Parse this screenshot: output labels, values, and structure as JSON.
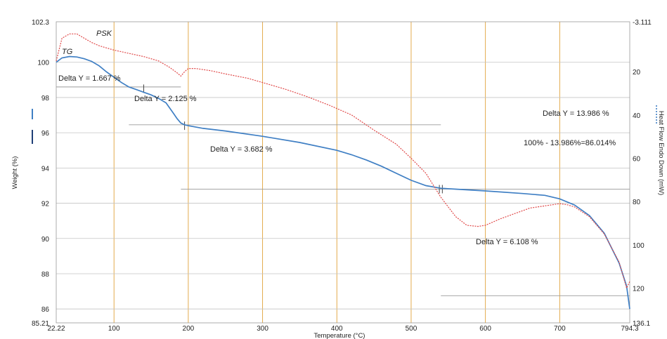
{
  "chart_data": {
    "type": "line",
    "xlabel": "Temperature (°C)",
    "ylabel_left": "Weight (%)",
    "ylabel_right": "Heat Flow Endo Down (mW)",
    "xlim": [
      22.22,
      794.3
    ],
    "ylim_left": [
      85.21,
      102.3
    ],
    "ylim_right": [
      -3.111,
      136.1
    ],
    "right_axis_inverted": true,
    "x_ticks": [
      22.22,
      100,
      200,
      300,
      400,
      500,
      600,
      700,
      794.3
    ],
    "x_tick_labels": [
      "22.22",
      "100",
      "200",
      "300",
      "400",
      "500",
      "600",
      "700",
      "794.3"
    ],
    "y_left_ticks": [
      85.21,
      86,
      88,
      90,
      92,
      94,
      96,
      98,
      100,
      102.3
    ],
    "y_left_tick_labels": [
      "85.21",
      "86",
      "88",
      "90",
      "92",
      "94",
      "96",
      "98",
      "100",
      "102.3"
    ],
    "y_right_ticks": [
      -3.111,
      20,
      40,
      60,
      80,
      100,
      120,
      136.1
    ],
    "y_right_tick_labels": [
      "-3.111",
      "20",
      "40",
      "60",
      "80",
      "100",
      "120",
      "136.1"
    ],
    "grid": true,
    "series": [
      {
        "axis": "left",
        "color": "#3f7fc4",
        "x": [
          22.22,
          30,
          40,
          50,
          60,
          70,
          80,
          90,
          100,
          110,
          120,
          130,
          140,
          150,
          160,
          170,
          175,
          180,
          185,
          190,
          195,
          200,
          220,
          250,
          300,
          350,
          400,
          420,
          440,
          460,
          480,
          500,
          520,
          540,
          560,
          600,
          650,
          680,
          700,
          720,
          740,
          760,
          780,
          790,
          794.3
        ],
        "values": [
          100.0,
          100.25,
          100.33,
          100.3,
          100.2,
          100.05,
          99.8,
          99.45,
          99.15,
          98.85,
          98.6,
          98.45,
          98.3,
          98.15,
          97.95,
          97.7,
          97.4,
          97.1,
          96.8,
          96.55,
          96.45,
          96.4,
          96.25,
          96.1,
          95.8,
          95.45,
          95.0,
          94.75,
          94.45,
          94.1,
          93.7,
          93.3,
          93.0,
          92.85,
          92.8,
          92.7,
          92.55,
          92.45,
          92.25,
          91.9,
          91.3,
          90.3,
          88.6,
          87.3,
          86.0
        ]
      },
      {
        "axis": "right",
        "color": "#e04848",
        "x": [
          22.22,
          30,
          40,
          50,
          60,
          70,
          80,
          100,
          120,
          140,
          160,
          175,
          185,
          190,
          195,
          200,
          210,
          230,
          250,
          280,
          300,
          330,
          360,
          390,
          420,
          450,
          480,
          500,
          520,
          540,
          560,
          575,
          590,
          600,
          620,
          640,
          660,
          680,
          700,
          710,
          720,
          740,
          760,
          780,
          790,
          794.3
        ],
        "values": [
          15,
          4.5,
          2.5,
          2.5,
          4.5,
          6.5,
          8.0,
          10.0,
          11.5,
          13.0,
          15.0,
          18.0,
          20.5,
          22.0,
          20.0,
          18.5,
          18.5,
          19.5,
          21.0,
          23.0,
          25.0,
          28.0,
          31.5,
          35.5,
          40.0,
          47.0,
          53.5,
          60.0,
          67.0,
          78.0,
          87.0,
          91.0,
          91.5,
          91.0,
          88.0,
          85.5,
          83.0,
          82.0,
          81.0,
          81.5,
          82.5,
          87.0,
          95.0,
          108.0,
          120.0,
          117.0
        ]
      }
    ],
    "annotations": [
      "Delta Y = 1.667 %",
      "Delta Y = 2.125 %",
      "Delta Y = 3.682 %",
      "Delta Y = 13.986 %",
      "100% - 13.986%=86.014%",
      "Delta Y = 6.108 %"
    ],
    "handwritten": [
      "PSK",
      "TG"
    ]
  }
}
